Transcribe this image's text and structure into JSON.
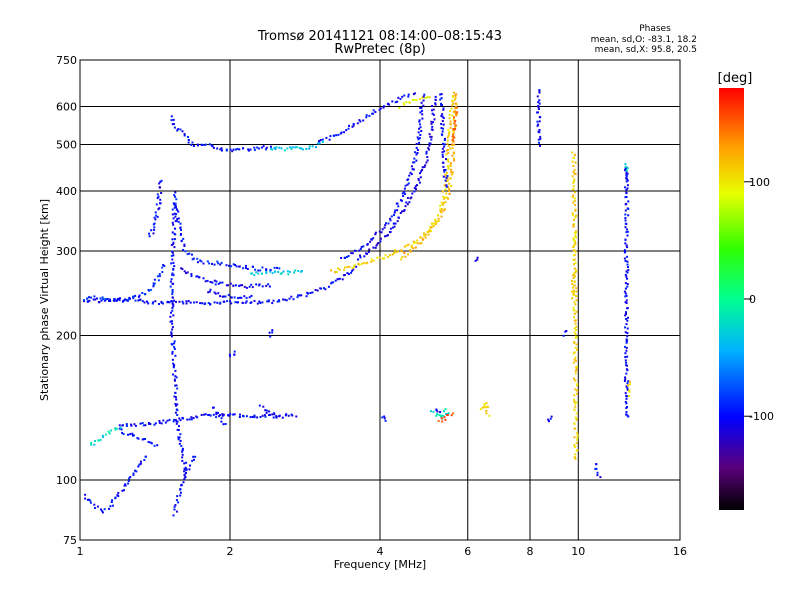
{
  "chart_data": {
    "type": "scatter",
    "title": "Tromsø 20141121 08:14:00–08:15:43",
    "subtitle": "RwPretec (8p)",
    "xlabel": "Frequency [MHz]",
    "ylabel": "Stationary phase Virtual Height [km]",
    "x_scale": "log",
    "y_scale": "log",
    "xlim": [
      1,
      16
    ],
    "ylim": [
      75,
      750
    ],
    "x_ticks": [
      1,
      2,
      4,
      6,
      8,
      10,
      16
    ],
    "x_tick_labels": [
      "1",
      "2",
      "4",
      "6",
      "8",
      "10",
      "16"
    ],
    "y_ticks": [
      75,
      100,
      200,
      300,
      400,
      500,
      600,
      750
    ],
    "y_tick_labels": [
      "75",
      "100",
      "200",
      "300",
      "400",
      "500",
      "600",
      "750"
    ],
    "grid": true,
    "info": {
      "heading": "Phases",
      "line1": "mean, sd,O: -83.1, 18.2",
      "line2": "mean, sd,X:  95.8, 20.5"
    },
    "colorbar": {
      "label": "[deg]",
      "range": [
        -180,
        180
      ],
      "ticks": [
        100,
        0,
        -100
      ],
      "tick_labels": [
        "100",
        "0",
        "-100"
      ]
    },
    "traces": [
      {
        "phase": -100,
        "points": [
          [
            1.0,
            236
          ],
          [
            1.02,
            236
          ],
          [
            1.3,
            238
          ],
          [
            1.45,
            233
          ],
          [
            1.6,
            235
          ],
          [
            1.8,
            234
          ],
          [
            2.0,
            234
          ],
          [
            2.2,
            234
          ],
          [
            2.5,
            236
          ],
          [
            2.8,
            242
          ],
          [
            3.0,
            248
          ],
          [
            3.2,
            256
          ],
          [
            3.45,
            268
          ],
          [
            3.6,
            280
          ]
        ]
      },
      {
        "phase": -90,
        "points": [
          [
            1.02,
            236
          ],
          [
            1.05,
            240
          ],
          [
            1.2,
            236
          ],
          [
            1.3,
            240
          ],
          [
            1.38,
            248
          ],
          [
            1.44,
            265
          ],
          [
            1.47,
            280
          ]
        ]
      },
      {
        "phase": -105,
        "points": [
          [
            1.6,
            275
          ],
          [
            1.7,
            265
          ],
          [
            1.85,
            258
          ],
          [
            2.0,
            255
          ],
          [
            2.15,
            253
          ],
          [
            2.4,
            255
          ]
        ]
      },
      {
        "phase": -30,
        "points": [
          [
            2.2,
            268
          ],
          [
            2.4,
            272
          ],
          [
            2.6,
            270
          ],
          [
            2.8,
            272
          ]
        ]
      },
      {
        "phase": -95,
        "points": [
          [
            1.55,
            395
          ],
          [
            1.57,
            350
          ],
          [
            1.6,
            320
          ],
          [
            1.62,
            300
          ],
          [
            1.65,
            295
          ],
          [
            1.68,
            290
          ],
          [
            1.75,
            285
          ],
          [
            1.8,
            284
          ],
          [
            1.9,
            283
          ],
          [
            2.0,
            280
          ],
          [
            2.1,
            278
          ],
          [
            2.3,
            275
          ],
          [
            2.5,
            275
          ]
        ]
      },
      {
        "phase": -100,
        "points": [
          [
            1.55,
            380
          ],
          [
            1.54,
            320
          ],
          [
            1.53,
            260
          ],
          [
            1.53,
            220
          ],
          [
            1.54,
            190
          ],
          [
            1.55,
            165
          ],
          [
            1.56,
            145
          ],
          [
            1.57,
            135
          ],
          [
            1.58,
            125
          ],
          [
            1.6,
            115
          ],
          [
            1.62,
            108
          ],
          [
            1.63,
            102
          ]
        ]
      },
      {
        "phase": -100,
        "points": [
          [
            1.55,
            85
          ],
          [
            1.56,
            88
          ],
          [
            1.57,
            90
          ],
          [
            1.58,
            93
          ],
          [
            1.6,
            96
          ],
          [
            1.62,
            100
          ],
          [
            1.64,
            104
          ],
          [
            1.66,
            108
          ],
          [
            1.7,
            112
          ]
        ]
      },
      {
        "phase": -95,
        "points": [
          [
            1.42,
            118
          ],
          [
            1.38,
            120
          ],
          [
            1.33,
            122
          ],
          [
            1.28,
            124
          ],
          [
            1.22,
            126
          ],
          [
            1.2,
            127
          ]
        ]
      },
      {
        "phase": -20,
        "points": [
          [
            1.05,
            118
          ],
          [
            1.1,
            122
          ],
          [
            1.15,
            126
          ],
          [
            1.2,
            129
          ]
        ]
      },
      {
        "phase": -100,
        "points": [
          [
            1.2,
            131
          ],
          [
            1.3,
            130
          ],
          [
            1.45,
            132
          ],
          [
            1.6,
            134
          ],
          [
            1.75,
            136
          ],
          [
            1.9,
            137
          ],
          [
            2.1,
            136
          ],
          [
            2.4,
            136
          ],
          [
            2.7,
            136
          ]
        ]
      },
      {
        "phase": -100,
        "points": [
          [
            1.02,
            93
          ],
          [
            1.05,
            90
          ],
          [
            1.08,
            88
          ],
          [
            1.12,
            86
          ],
          [
            1.15,
            88
          ],
          [
            1.25,
            100
          ],
          [
            1.3,
            105
          ],
          [
            1.35,
            112
          ]
        ]
      },
      {
        "phase": -100,
        "points": [
          [
            1.45,
            420
          ],
          [
            1.44,
            380
          ],
          [
            1.42,
            350
          ],
          [
            1.4,
            330
          ],
          [
            1.38,
            320
          ]
        ]
      },
      {
        "phase": -95,
        "points": [
          [
            1.52,
            570
          ],
          [
            1.55,
            545
          ],
          [
            1.6,
            530
          ],
          [
            1.68,
            500
          ],
          [
            1.78,
            500
          ],
          [
            1.9,
            490
          ],
          [
            2.0,
            488
          ],
          [
            2.1,
            488
          ],
          [
            2.2,
            490
          ],
          [
            2.4,
            493
          ]
        ]
      },
      {
        "phase": -35,
        "points": [
          [
            2.4,
            490
          ],
          [
            2.7,
            490
          ],
          [
            2.9,
            493
          ],
          [
            3.05,
            505
          ]
        ]
      },
      {
        "phase": -100,
        "points": [
          [
            3.0,
            505
          ],
          [
            3.3,
            525
          ],
          [
            3.6,
            555
          ],
          [
            3.9,
            585
          ],
          [
            4.2,
            610
          ],
          [
            4.4,
            625
          ],
          [
            4.6,
            630
          ],
          [
            4.7,
            635
          ]
        ]
      },
      {
        "phase": -100,
        "points": [
          [
            3.35,
            290
          ],
          [
            3.6,
            300
          ],
          [
            3.9,
            320
          ],
          [
            4.2,
            350
          ],
          [
            4.5,
            400
          ],
          [
            4.7,
            460
          ],
          [
            4.8,
            530
          ],
          [
            4.85,
            600
          ],
          [
            4.88,
            640
          ]
        ]
      },
      {
        "phase": -110,
        "points": [
          [
            3.6,
            290
          ],
          [
            3.9,
            305
          ],
          [
            4.2,
            330
          ],
          [
            4.5,
            370
          ],
          [
            4.8,
            420
          ],
          [
            5.0,
            480
          ],
          [
            5.1,
            560
          ],
          [
            5.15,
            630
          ]
        ]
      },
      {
        "phase": 110,
        "points": [
          [
            3.2,
            272
          ],
          [
            3.5,
            278
          ],
          [
            3.8,
            285
          ],
          [
            4.1,
            292
          ],
          [
            4.4,
            302
          ],
          [
            4.7,
            312
          ],
          [
            5.0,
            330
          ],
          [
            5.2,
            350
          ],
          [
            5.35,
            380
          ],
          [
            5.45,
            430
          ],
          [
            5.5,
            500
          ],
          [
            5.55,
            580
          ],
          [
            5.6,
            640
          ]
        ]
      },
      {
        "phase": 120,
        "points": [
          [
            4.4,
            290
          ],
          [
            4.7,
            305
          ],
          [
            5.0,
            325
          ],
          [
            5.3,
            355
          ],
          [
            5.5,
            400
          ],
          [
            5.6,
            470
          ],
          [
            5.65,
            550
          ],
          [
            5.7,
            640
          ]
        ]
      },
      {
        "phase": 95,
        "points": [
          [
            4.4,
            600
          ],
          [
            4.6,
            615
          ],
          [
            4.8,
            625
          ],
          [
            5.0,
            630
          ]
        ]
      },
      {
        "phase": 145,
        "points": [
          [
            5.6,
            500
          ],
          [
            5.65,
            540
          ],
          [
            5.7,
            600
          ]
        ]
      },
      {
        "phase": -100,
        "points": [
          [
            5.3,
            640
          ],
          [
            5.32,
            600
          ],
          [
            5.34,
            560
          ],
          [
            5.36,
            520
          ],
          [
            5.38,
            480
          ],
          [
            5.4,
            440
          ],
          [
            5.45,
            410
          ]
        ]
      },
      {
        "phase": -100,
        "points": [
          [
            1.8,
            248
          ],
          [
            1.95,
            242
          ],
          [
            2.2,
            240
          ]
        ]
      },
      {
        "phase": -100,
        "points": [
          [
            2.4,
            200
          ],
          [
            2.45,
            205
          ]
        ]
      },
      {
        "phase": -100,
        "points": [
          [
            2.3,
            142
          ],
          [
            2.4,
            138
          ],
          [
            2.5,
            135
          ]
        ]
      },
      {
        "phase": -100,
        "points": [
          [
            1.85,
            142
          ],
          [
            1.9,
            135
          ],
          [
            1.95,
            130
          ]
        ]
      },
      {
        "phase": -100,
        "points": [
          [
            2.0,
            180
          ],
          [
            2.05,
            185
          ]
        ]
      },
      {
        "phase": 110,
        "points": [
          [
            9.7,
            240
          ],
          [
            9.75,
            255
          ],
          [
            9.8,
            270
          ]
        ]
      },
      {
        "phase": 110,
        "points": [
          [
            9.8,
            300
          ],
          [
            9.85,
            320
          ]
        ]
      },
      {
        "phase": -100,
        "points": [
          [
            12.5,
            420
          ],
          [
            12.5,
            450
          ],
          [
            12.5,
            390
          ],
          [
            12.5,
            340
          ],
          [
            12.5,
            240
          ],
          [
            12.5,
            200
          ],
          [
            12.5,
            165
          ],
          [
            12.5,
            150
          ],
          [
            12.5,
            135
          ]
        ]
      },
      {
        "phase": -30,
        "points": [
          [
            12.5,
            440
          ],
          [
            12.5,
            455
          ]
        ]
      },
      {
        "phase": -100,
        "points": [
          [
            9.4,
            200
          ],
          [
            9.45,
            205
          ]
        ]
      },
      {
        "phase": -100,
        "points": [
          [
            8.3,
            650
          ],
          [
            8.35,
            500
          ]
        ]
      },
      {
        "phase": 110,
        "points": [
          [
            9.8,
            480
          ],
          [
            9.9,
            110
          ]
        ]
      },
      {
        "phase": -100,
        "points": [
          [
            4.05,
            136
          ],
          [
            4.1,
            132
          ]
        ]
      },
      {
        "phase": -20,
        "points": [
          [
            5.1,
            140
          ],
          [
            5.2,
            137
          ],
          [
            5.3,
            134
          ],
          [
            5.45,
            140
          ],
          [
            5.5,
            137
          ]
        ]
      },
      {
        "phase": -100,
        "points": [
          [
            5.15,
            140
          ],
          [
            5.3,
            138
          ]
        ]
      },
      {
        "phase": 150,
        "points": [
          [
            5.25,
            132
          ],
          [
            5.6,
            138
          ]
        ]
      },
      {
        "phase": 110,
        "points": [
          [
            6.4,
            140
          ],
          [
            6.5,
            145
          ],
          [
            6.6,
            137
          ]
        ]
      },
      {
        "phase": -100,
        "points": [
          [
            10.8,
            108
          ],
          [
            11.0,
            102
          ]
        ]
      },
      {
        "phase": -100,
        "points": [
          [
            8.7,
            132
          ],
          [
            8.8,
            136
          ]
        ]
      },
      {
        "phase": 110,
        "points": [
          [
            12.6,
            150
          ],
          [
            12.6,
            160
          ]
        ]
      },
      {
        "phase": -100,
        "points": [
          [
            6.2,
            285
          ],
          [
            6.3,
            290
          ]
        ]
      }
    ]
  }
}
